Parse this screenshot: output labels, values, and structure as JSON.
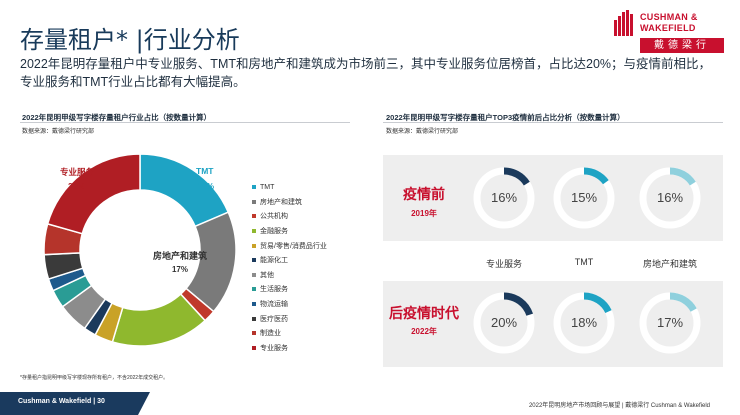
{
  "header": {
    "title": "存量租户* |行业分析",
    "logo_en_line1": "CUSHMAN &",
    "logo_en_line2": "WAKEFIELD",
    "logo_cn": "戴德梁行"
  },
  "summary": "2022年昆明存量租户中专业服务、TMT和房地产和建筑成为市场前三，其中专业服务位居榜首，占比达20%；与疫情前相比，专业服务和TMT行业占比都有大幅提高。",
  "left_panel": {
    "title": "2022年昆明甲级写字楼存量租户行业占比（按数量计算）",
    "source": "数据来源：戴德梁行研究部",
    "footnote": "*存量租户指昆明甲级写字楼现存所有租户，不含2022年成交租户。"
  },
  "right_panel": {
    "title": "2022年昆明甲级写字楼存量租户TOP3疫情前后占比分析（按数量计算）",
    "source": "数据来源：戴德梁行研究部"
  },
  "chart_data": [
    {
      "type": "pie",
      "title": "2022年昆明甲级写字楼存量租户行业占比（按数量计算）",
      "categories": [
        "TMT",
        "房地产和建筑",
        "公共机构",
        "金融服务",
        "贸易/零售/消费品行业",
        "能源化工",
        "其他",
        "生活服务",
        "物流运输",
        "医疗医药",
        "制造业",
        "专业服务"
      ],
      "values": [
        18,
        17,
        2,
        16,
        3,
        2,
        5,
        3,
        2,
        4,
        5,
        20
      ],
      "colors": [
        "#1ea3c4",
        "#7a7a7a",
        "#c0392b",
        "#8fb82e",
        "#c9a227",
        "#1b3a5c",
        "#8c8c8c",
        "#2a9c95",
        "#1e5a8c",
        "#3a3a3a",
        "#b5342b",
        "#b01e24"
      ],
      "labeled": {
        "TMT": {
          "label": "TMT",
          "value_text": "18%"
        },
        "专业服务": {
          "label": "专业服务",
          "value_text": "20%"
        },
        "房地产和建筑": {
          "label": "房地产和建筑",
          "value_text": "17%"
        }
      },
      "legend_position": "right"
    },
    {
      "type": "pie",
      "title": "2022年昆明甲级写字楼存量租户TOP3疫情前后占比分析（按数量计算）",
      "categories": [
        "专业服务",
        "TMT",
        "房地产和建筑"
      ],
      "series": [
        {
          "name": "疫情前",
          "year": "2019年",
          "values": [
            16,
            15,
            16
          ]
        },
        {
          "name": "后疫情时代",
          "year": "2022年",
          "values": [
            20,
            18,
            17
          ]
        }
      ],
      "value_texts": [
        [
          "16%",
          "15%",
          "16%"
        ],
        [
          "20%",
          "18%",
          "17%"
        ]
      ],
      "ring_colors": [
        "#1b3a5c",
        "#1ea3c4",
        "#8fd0dd"
      ],
      "track_color": "#ffffff"
    }
  ],
  "footer": {
    "left": "Cushman & Wakefield  |  30",
    "right": "2022年昆明房地产市场回顾与展望  |  戴德梁行 Cushman & Wakefield"
  }
}
